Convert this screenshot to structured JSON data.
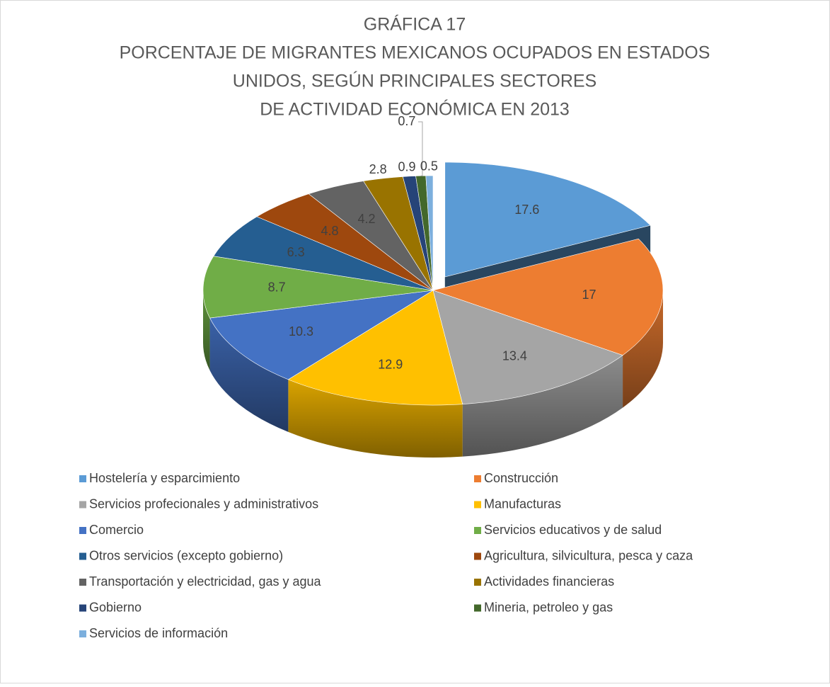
{
  "chart_data": {
    "type": "pie3d",
    "title": [
      "GRÁFICA 17",
      "PORCENTAJE DE MIGRANTES MEXICANOS OCUPADOS EN ESTADOS",
      "UNIDOS, SEGÚN PRINCIPALES SECTORES",
      "DE ACTIVIDAD ECONÓMICA EN 2013"
    ],
    "categories": [
      "Hostelería y esparcimiento",
      "Construcción",
      "Servicios profecionales y administrativos",
      "Manufacturas",
      "Comercio",
      "Servicios educativos y de salud",
      "Otros servicios (excepto gobierno)",
      "Agricultura, silvicultura, pesca y caza",
      "Transportación y electricidad, gas y agua",
      "Actividades financieras",
      "Gobierno",
      "Mineria, petroleo y gas",
      "Servicios de información"
    ],
    "values": [
      17.6,
      17,
      13.4,
      12.9,
      10.3,
      8.7,
      6.3,
      4.8,
      4.2,
      2.8,
      0.9,
      0.7,
      0.5
    ],
    "colors": [
      "#5b9bd5",
      "#ed7d31",
      "#a5a5a5",
      "#ffc000",
      "#4472c4",
      "#70ad47",
      "#255e91",
      "#9e480e",
      "#636363",
      "#997300",
      "#264478",
      "#43682b",
      "#7cafdd"
    ],
    "exploded": [
      0
    ],
    "legend": "bottom"
  }
}
